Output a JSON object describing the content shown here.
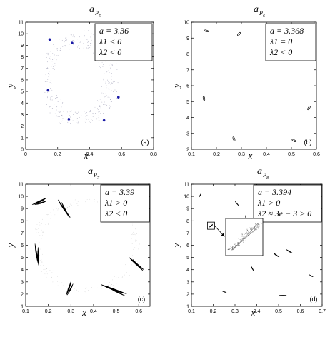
{
  "chart_data": [
    {
      "type": "scatter",
      "title_base": "a",
      "title_sub": "P",
      "title_subsub": "5",
      "xlabel": "x",
      "ylabel": "y",
      "xlim": [
        0,
        0.8
      ],
      "ylim": [
        0,
        11
      ],
      "xticks": [
        "0",
        "0.2",
        "0.4",
        "0.6",
        "0.8"
      ],
      "yticks": [
        "0",
        "1",
        "2",
        "3",
        "4",
        "5",
        "6",
        "7",
        "8",
        "9",
        "10",
        "11"
      ],
      "panel_label": "(a)",
      "annotation": [
        "a = 3.36",
        "λ1 < 0",
        "λ2 < 0"
      ],
      "highlight_color": "#1a1aa6",
      "series": [
        {
          "marker": "dot-blue",
          "x": [
            0.15,
            0.29,
            0.14,
            0.58,
            0.27,
            0.49
          ],
          "y": [
            9.5,
            9.2,
            5.1,
            4.5,
            2.6,
            2.5
          ]
        }
      ]
    },
    {
      "type": "scatter",
      "title_base": "a",
      "title_sub": "P",
      "title_subsub": "6",
      "xlabel": "x",
      "ylabel": "y",
      "xlim": [
        0.1,
        0.6
      ],
      "ylim": [
        2,
        10
      ],
      "xticks": [
        "0.1",
        "0.2",
        "0.3",
        "0.4",
        "0.5",
        "0.6"
      ],
      "yticks": [
        "2",
        "3",
        "4",
        "5",
        "6",
        "7",
        "8",
        "9",
        "10"
      ],
      "panel_label": "(b)",
      "annotation": [
        "a = 3.368",
        "λ1 = 0",
        "λ2 < 0"
      ],
      "series": [
        {
          "marker": "loop",
          "x": [
            0.16,
            0.29,
            0.15,
            0.57,
            0.27,
            0.51
          ],
          "y": [
            9.45,
            9.25,
            5.2,
            4.6,
            2.65,
            2.55
          ]
        }
      ]
    },
    {
      "type": "scatter",
      "title_base": "a",
      "title_sub": "P",
      "title_subsub": "7",
      "xlabel": "x",
      "ylabel": "y",
      "xlim": [
        0.1,
        0.65
      ],
      "ylim": [
        1,
        11
      ],
      "xticks": [
        "0.1",
        "0.2",
        "0.3",
        "0.4",
        "0.5",
        "0.6"
      ],
      "yticks": [
        "1",
        "2",
        "3",
        "4",
        "5",
        "6",
        "7",
        "8",
        "9",
        "10",
        "11"
      ],
      "panel_label": "(c)",
      "annotation": [
        "a = 3.39",
        "λ1 > 0",
        "λ2 < 0"
      ],
      "series": [
        {
          "marker": "blade",
          "x": [
            0.16,
            0.27,
            0.15,
            0.59,
            0.29,
            0.49
          ],
          "y": [
            9.6,
            9.0,
            5.2,
            4.5,
            2.5,
            2.4
          ]
        }
      ]
    },
    {
      "type": "scatter",
      "title_base": "a",
      "title_sub": "P",
      "title_subsub": "8",
      "xlabel": "x",
      "ylabel": "y",
      "xlim": [
        0.1,
        0.7
      ],
      "ylim": [
        1,
        11
      ],
      "xticks": [
        "0.1",
        "0.2",
        "0.3",
        "0.4",
        "0.5",
        "0.6",
        "0.7"
      ],
      "yticks": [
        "1",
        "2",
        "3",
        "4",
        "5",
        "6",
        "7",
        "8",
        "9",
        "10",
        "11"
      ],
      "panel_label": "(d)",
      "annotation": [
        "a = 3.394",
        "λ1 > 0",
        "λ2 ≈ 3e − 3 > 0"
      ],
      "series": [
        {
          "marker": "blade-small",
          "x": [
            0.14,
            0.31,
            0.19,
            0.35,
            0.55,
            0.49,
            0.25,
            0.38,
            0.52,
            0.65
          ],
          "y": [
            10.1,
            9.4,
            7.6,
            8.3,
            5.5,
            5.2,
            2.2,
            4.1,
            1.9,
            3.5
          ]
        }
      ]
    }
  ]
}
